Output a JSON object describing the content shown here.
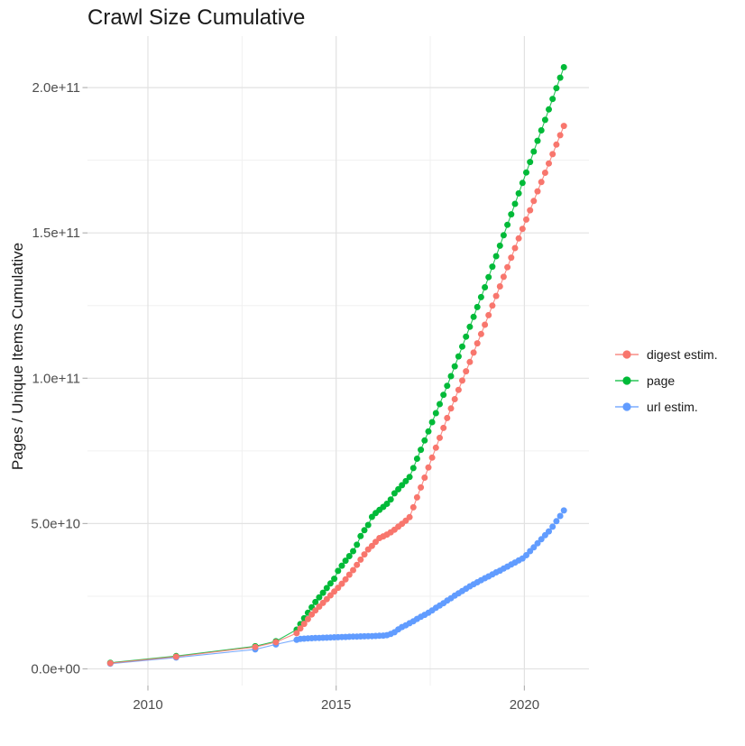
{
  "chart_data": {
    "type": "scatter",
    "title": "Crawl Size Cumulative",
    "xlabel": "",
    "ylabel": "Pages / Unique Items Cumulative",
    "legend_position": "right",
    "grid": "on",
    "value_unit": "1e9",
    "axes": {
      "x": {
        "ticks": [
          {
            "label": "2010",
            "value": 2010
          },
          {
            "label": "2015",
            "value": 2015
          },
          {
            "label": "2020",
            "value": 2020
          }
        ],
        "minor_ticks": [
          2012.5,
          2017.5
        ],
        "range": [
          2008.45,
          2021.75
        ]
      },
      "y": {
        "ticks": [
          {
            "label": "0.0e+00",
            "value": 0
          },
          {
            "label": "5.0e+10",
            "value": 50
          },
          {
            "label": "1.0e+11",
            "value": 100
          },
          {
            "label": "1.5e+11",
            "value": 150
          },
          {
            "label": "2.0e+11",
            "value": 200
          }
        ],
        "minor_ticks": [
          25,
          75,
          125,
          175
        ],
        "range": [
          -12,
          217.5
        ]
      }
    },
    "x": [
      2009,
      2010.75,
      2012.85,
      2013.4,
      2013.95,
      2014.05,
      2014.15,
      2014.25,
      2014.35,
      2014.45,
      2014.55,
      2014.65,
      2014.75,
      2014.85,
      2014.95,
      2015.05,
      2015.15,
      2015.25,
      2015.35,
      2015.45,
      2015.55,
      2015.65,
      2015.75,
      2015.85,
      2015.95,
      2016.05,
      2016.15,
      2016.25,
      2016.35,
      2016.45,
      2016.55,
      2016.65,
      2016.75,
      2016.85,
      2016.95,
      2017.05,
      2017.15,
      2017.25,
      2017.35,
      2017.45,
      2017.55,
      2017.65,
      2017.75,
      2017.85,
      2017.95,
      2018.05,
      2018.15,
      2018.25,
      2018.35,
      2018.45,
      2018.55,
      2018.65,
      2018.75,
      2018.85,
      2018.95,
      2019.05,
      2019.15,
      2019.25,
      2019.35,
      2019.45,
      2019.55,
      2019.65,
      2019.75,
      2019.85,
      2019.95,
      2020.05,
      2020.15,
      2020.25,
      2020.35,
      2020.45,
      2020.55,
      2020.65,
      2020.75,
      2020.85,
      2020.95,
      2021.05
    ],
    "series": [
      {
        "name": "digest estim.",
        "key": "digest",
        "color": "#F8766D",
        "values": [
          1.95,
          4.2,
          7.5,
          9.2,
          12.3,
          13.9,
          15.5,
          17.1,
          18.7,
          20.1,
          21.4,
          22.7,
          24.0,
          25.3,
          26.6,
          27.9,
          29.3,
          30.8,
          32.4,
          34.0,
          35.8,
          37.6,
          39.4,
          41.1,
          42.3,
          43.7,
          45.0,
          45.6,
          46.2,
          47.0,
          47.9,
          48.9,
          49.9,
          51.0,
          52.2,
          55.6,
          59.0,
          62.4,
          65.8,
          69.3,
          72.7,
          76.1,
          79.5,
          82.9,
          86.3,
          89.6,
          92.8,
          96.0,
          99.2,
          102.4,
          105.6,
          108.8,
          112.0,
          115.2,
          118.4,
          121.7,
          125.0,
          128.3,
          131.6,
          134.9,
          138.2,
          141.5,
          144.8,
          148.1,
          151.4,
          154.6,
          157.8,
          161.0,
          164.3,
          167.5,
          170.7,
          173.9,
          177.1,
          180.4,
          183.6,
          186.8
        ]
      },
      {
        "name": "page",
        "key": "page",
        "color": "#00BA38",
        "values": [
          2.1,
          4.4,
          7.8,
          9.5,
          13.5,
          15.4,
          17.4,
          19.3,
          21.2,
          23.0,
          24.6,
          26.2,
          27.8,
          29.4,
          31.0,
          33.7,
          35.5,
          37.2,
          38.8,
          40.5,
          42.7,
          45.7,
          47.7,
          49.5,
          52.3,
          53.6,
          54.7,
          55.7,
          56.8,
          58.3,
          60.4,
          61.8,
          63.2,
          64.6,
          66.0,
          69.1,
          72.3,
          75.4,
          78.6,
          81.7,
          84.9,
          88.0,
          91.1,
          94.3,
          97.4,
          100.7,
          104.1,
          107.5,
          110.9,
          114.3,
          117.7,
          121.1,
          124.5,
          127.9,
          131.3,
          134.8,
          138.4,
          142.0,
          145.6,
          149.2,
          152.8,
          156.4,
          160.0,
          163.6,
          167.2,
          170.8,
          174.4,
          178.0,
          181.7,
          185.3,
          188.9,
          192.5,
          196.1,
          199.8,
          203.4,
          207.0
        ]
      },
      {
        "name": "url estim.",
        "key": "url",
        "color": "#619CFF",
        "values": [
          1.8,
          3.9,
          6.7,
          8.4,
          10.0,
          10.3,
          10.4,
          10.5,
          10.55,
          10.6,
          10.65,
          10.7,
          10.75,
          10.8,
          10.85,
          10.9,
          10.95,
          11.0,
          11.05,
          11.1,
          11.12,
          11.16,
          11.2,
          11.24,
          11.28,
          11.32,
          11.38,
          11.45,
          11.6,
          12.0,
          12.6,
          13.6,
          14.4,
          15.0,
          15.7,
          16.4,
          17.2,
          17.9,
          18.6,
          19.3,
          20.1,
          21.0,
          21.8,
          22.6,
          23.5,
          24.3,
          25.2,
          26.0,
          26.8,
          27.6,
          28.4,
          29.1,
          29.8,
          30.5,
          31.2,
          31.8,
          32.5,
          33.2,
          33.8,
          34.5,
          35.2,
          35.9,
          36.6,
          37.3,
          38.0,
          39.1,
          40.5,
          41.8,
          43.2,
          44.6,
          46.0,
          47.3,
          48.9,
          50.8,
          52.6,
          54.5
        ]
      }
    ],
    "colors": {
      "grid_major": "#E2E2E2",
      "grid_minor": "#F0F0F0",
      "tick_mark": "#B3B3B3",
      "tick_label": "#4D4D4D",
      "text": "#1A1A1A"
    }
  }
}
